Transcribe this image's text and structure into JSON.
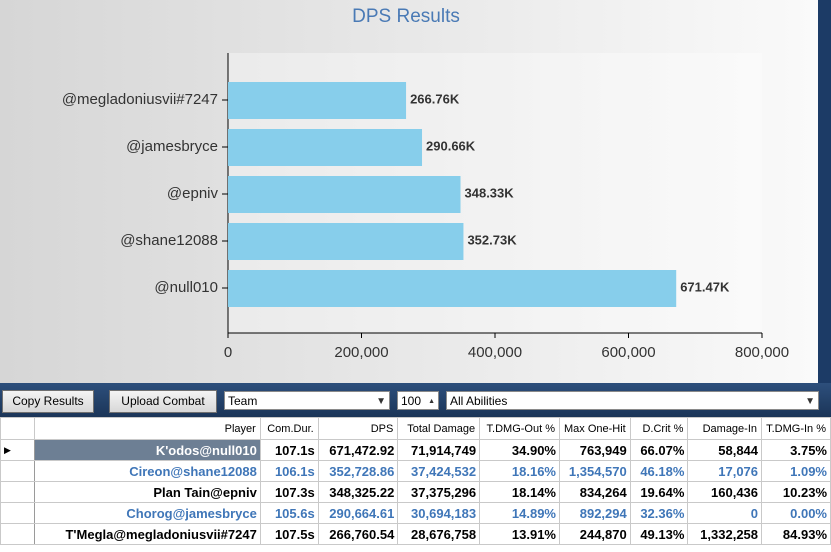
{
  "chart_data": {
    "type": "bar",
    "orientation": "horizontal",
    "title": "DPS Results",
    "categories": [
      "@megladoniusvii#7247",
      "@jamesbryce",
      "@epniv",
      "@shane12088",
      "@null010"
    ],
    "values": [
      266760.54,
      290664.61,
      348325.22,
      352728.86,
      671472.92
    ],
    "value_labels": [
      "266.76K",
      "290.66K",
      "348.33K",
      "352.73K",
      "671.47K"
    ],
    "color": "#87ceeb",
    "xlim": [
      0,
      800000
    ],
    "xticks": [
      0,
      {
        "value": 200000,
        "label": "200,000"
      },
      {
        "value": 400000,
        "label": "400,000"
      },
      {
        "value": 600000,
        "label": "600,000"
      },
      {
        "value": 800000,
        "label": "800,000"
      }
    ],
    "grid": false
  },
  "toolbar": {
    "copy_button": "Copy Results",
    "upload_button": "Upload Combat",
    "group_select": "Team",
    "count": "100",
    "ability_select": "All Abilities"
  },
  "table": {
    "columns": [
      "Player",
      "Com.Dur.",
      "DPS",
      "Total Damage",
      "T.DMG-Out %",
      "Max One-Hit",
      "D.Crit %",
      "Damage-In",
      "T.DMG-In %"
    ],
    "rows": [
      [
        "K'odos@null010",
        "107.1s",
        "671,472.92",
        "71,914,749",
        "34.90%",
        "763,949",
        "66.07%",
        "58,844",
        "3.75%"
      ],
      [
        "Cireon@shane12088",
        "106.1s",
        "352,728.86",
        "37,424,532",
        "18.16%",
        "1,354,570",
        "46.18%",
        "17,076",
        "1.09%"
      ],
      [
        "Plan Tain@epniv",
        "107.3s",
        "348,325.22",
        "37,375,296",
        "18.14%",
        "834,264",
        "19.64%",
        "160,436",
        "10.23%"
      ],
      [
        "Chorog@jamesbryce",
        "105.6s",
        "290,664.61",
        "30,694,183",
        "14.89%",
        "892,294",
        "32.36%",
        "0",
        "0.00%"
      ],
      [
        "T'Megla@megladoniusvii#7247",
        "107.5s",
        "266,760.54",
        "28,676,758",
        "13.91%",
        "244,870",
        "49.13%",
        "1,332,258",
        "84.93%"
      ]
    ]
  }
}
